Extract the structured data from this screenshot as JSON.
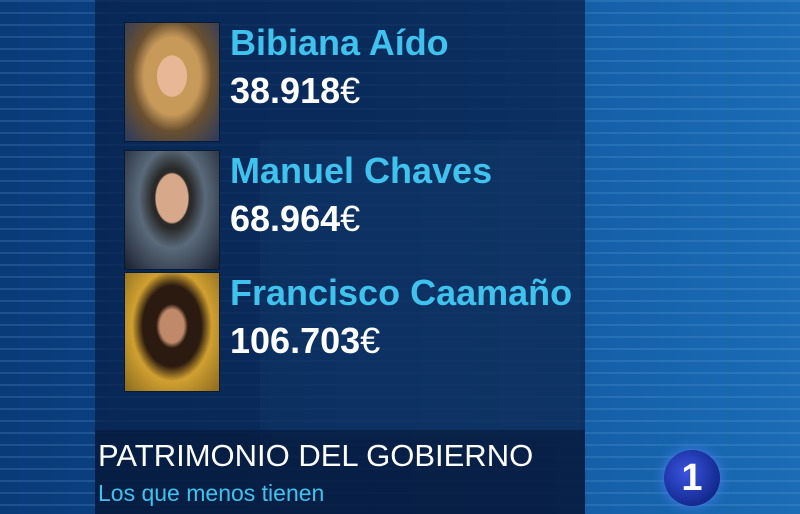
{
  "people": [
    {
      "name": "Bibiana Aído",
      "amount": "38.918",
      "currency": "€"
    },
    {
      "name": "Manuel Chaves",
      "amount": "68.964",
      "currency": "€"
    },
    {
      "name": "Francisco Caamaño",
      "amount": "106.703",
      "currency": "€"
    }
  ],
  "caption": {
    "title": "PATRIMONIO DEL GOBIERNO",
    "subtitle": "Los que menos tienen"
  },
  "channel_logo": "1",
  "colors": {
    "name": "#3fc3ee",
    "amount": "#ffffff",
    "background": "#0b4a90"
  }
}
